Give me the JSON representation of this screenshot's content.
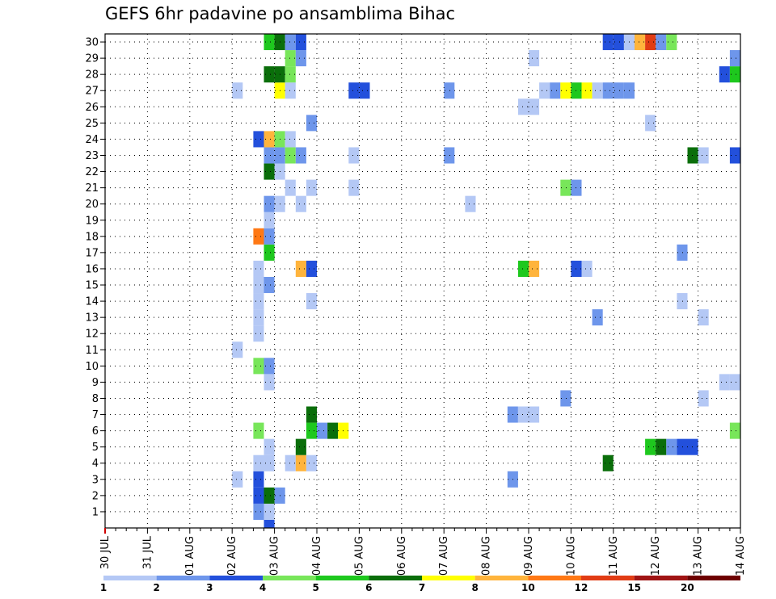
{
  "chart_data": {
    "type": "heatmap",
    "title": "GEFS 6hr padavine po ansamblima Bihac",
    "x_labels": [
      "30 JUL",
      "31 JUL",
      "01 AUG",
      "02 AUG",
      "03 AUG",
      "04 AUG",
      "05 AUG",
      "06 AUG",
      "07 AUG",
      "08 AUG",
      "09 AUG",
      "10 AUG",
      "11 AUG",
      "12 AUG",
      "13 AUG",
      "14 AUG"
    ],
    "y_labels": [
      "1",
      "2",
      "3",
      "4",
      "5",
      "6",
      "7",
      "8",
      "9",
      "10",
      "11",
      "12",
      "13",
      "14",
      "15",
      "16",
      "17",
      "18",
      "19",
      "20",
      "21",
      "22",
      "23",
      "24",
      "25",
      "26",
      "27",
      "28",
      "29",
      "30"
    ],
    "x_unit": "6h steps since 30 JUL 00Z",
    "x_range": [
      0,
      60
    ],
    "y_range": [
      0,
      30
    ],
    "grid": true,
    "colorbar": {
      "labels": [
        "1",
        "2",
        "3",
        "4",
        "5",
        "6",
        "7",
        "8",
        "10",
        "12",
        "15",
        "20"
      ],
      "colors": [
        "#b4c8f5",
        "#6e96eb",
        "#2350dc",
        "#78e65a",
        "#1ec81e",
        "#0a6e0a",
        "#ffff00",
        "#ffb43c",
        "#ff7814",
        "#e13c14",
        "#a01414",
        "#6e0000"
      ]
    },
    "cells": [
      [
        15,
        0,
        "#2350dc"
      ],
      [
        14,
        1,
        "#6e96eb"
      ],
      [
        15,
        1,
        "#b4c8f5"
      ],
      [
        14,
        2,
        "#2350dc"
      ],
      [
        15,
        2,
        "#0a6e0a"
      ],
      [
        16,
        2,
        "#6e96eb"
      ],
      [
        14,
        3,
        "#2350dc"
      ],
      [
        12,
        3,
        "#b4c8f5"
      ],
      [
        38,
        3,
        "#6e96eb"
      ],
      [
        14,
        4,
        "#b4c8f5"
      ],
      [
        15,
        4,
        "#b4c8f5"
      ],
      [
        17,
        4,
        "#b4c8f5"
      ],
      [
        18,
        4,
        "#ffb43c"
      ],
      [
        19,
        4,
        "#b4c8f5"
      ],
      [
        47,
        4,
        "#0a6e0a"
      ],
      [
        15,
        5,
        "#b4c8f5"
      ],
      [
        18,
        5,
        "#0a6e0a"
      ],
      [
        51,
        5,
        "#1ec81e"
      ],
      [
        52,
        5,
        "#0a6e0a"
      ],
      [
        53,
        5,
        "#6e96eb"
      ],
      [
        54,
        5,
        "#2350dc"
      ],
      [
        55,
        5,
        "#2350dc"
      ],
      [
        14,
        6,
        "#78e65a"
      ],
      [
        19,
        6,
        "#1ec81e"
      ],
      [
        20,
        6,
        "#6e96eb"
      ],
      [
        21,
        6,
        "#0a6e0a"
      ],
      [
        22,
        6,
        "#ffff00"
      ],
      [
        59,
        6,
        "#78e65a"
      ],
      [
        19,
        7,
        "#0a6e0a"
      ],
      [
        38,
        7,
        "#6e96eb"
      ],
      [
        39,
        7,
        "#b4c8f5"
      ],
      [
        40,
        7,
        "#b4c8f5"
      ],
      [
        43,
        8,
        "#6e96eb"
      ],
      [
        56,
        8,
        "#b4c8f5"
      ],
      [
        15,
        9,
        "#b4c8f5"
      ],
      [
        58,
        9,
        "#b4c8f5"
      ],
      [
        59,
        9,
        "#b4c8f5"
      ],
      [
        14,
        10,
        "#78e65a"
      ],
      [
        15,
        10,
        "#6e96eb"
      ],
      [
        12,
        11,
        "#b4c8f5"
      ],
      [
        14,
        12,
        "#b4c8f5"
      ],
      [
        14,
        13,
        "#b4c8f5"
      ],
      [
        46,
        13,
        "#6e96eb"
      ],
      [
        56,
        13,
        "#b4c8f5"
      ],
      [
        14,
        14,
        "#b4c8f5"
      ],
      [
        19,
        14,
        "#b4c8f5"
      ],
      [
        54,
        14,
        "#b4c8f5"
      ],
      [
        14,
        15,
        "#b4c8f5"
      ],
      [
        15,
        15,
        "#6e96eb"
      ],
      [
        14,
        16,
        "#b4c8f5"
      ],
      [
        18,
        16,
        "#ffb43c"
      ],
      [
        19,
        16,
        "#2350dc"
      ],
      [
        39,
        16,
        "#1ec81e"
      ],
      [
        40,
        16,
        "#ffb43c"
      ],
      [
        44,
        16,
        "#2350dc"
      ],
      [
        45,
        16,
        "#b4c8f5"
      ],
      [
        15,
        17,
        "#1ec81e"
      ],
      [
        54,
        17,
        "#6e96eb"
      ],
      [
        14,
        18,
        "#ff7814"
      ],
      [
        15,
        18,
        "#6e96eb"
      ],
      [
        15,
        19,
        "#b4c8f5"
      ],
      [
        15,
        20,
        "#6e96eb"
      ],
      [
        16,
        20,
        "#b4c8f5"
      ],
      [
        18,
        20,
        "#b4c8f5"
      ],
      [
        34,
        20,
        "#b4c8f5"
      ],
      [
        17,
        21,
        "#b4c8f5"
      ],
      [
        19,
        21,
        "#b4c8f5"
      ],
      [
        23,
        21,
        "#b4c8f5"
      ],
      [
        43,
        21,
        "#78e65a"
      ],
      [
        44,
        21,
        "#6e96eb"
      ],
      [
        15,
        22,
        "#0a6e0a"
      ],
      [
        16,
        22,
        "#b4c8f5"
      ],
      [
        15,
        23,
        "#6e96eb"
      ],
      [
        16,
        23,
        "#6e96eb"
      ],
      [
        17,
        23,
        "#78e65a"
      ],
      [
        18,
        23,
        "#6e96eb"
      ],
      [
        23,
        23,
        "#b4c8f5"
      ],
      [
        32,
        23,
        "#6e96eb"
      ],
      [
        55,
        23,
        "#0a6e0a"
      ],
      [
        56,
        23,
        "#b4c8f5"
      ],
      [
        59,
        23,
        "#2350dc"
      ],
      [
        14,
        24,
        "#2350dc"
      ],
      [
        15,
        24,
        "#ffb43c"
      ],
      [
        16,
        24,
        "#78e65a"
      ],
      [
        17,
        24,
        "#b4c8f5"
      ],
      [
        19,
        25,
        "#6e96eb"
      ],
      [
        51,
        25,
        "#b4c8f5"
      ],
      [
        39,
        26,
        "#b4c8f5"
      ],
      [
        40,
        26,
        "#b4c8f5"
      ],
      [
        12,
        27,
        "#b4c8f5"
      ],
      [
        16,
        27,
        "#ffff00"
      ],
      [
        17,
        27,
        "#b4c8f5"
      ],
      [
        23,
        27,
        "#2350dc"
      ],
      [
        24,
        27,
        "#2350dc"
      ],
      [
        32,
        27,
        "#6e96eb"
      ],
      [
        41,
        27,
        "#b4c8f5"
      ],
      [
        42,
        27,
        "#6e96eb"
      ],
      [
        43,
        27,
        "#ffff00"
      ],
      [
        44,
        27,
        "#1ec81e"
      ],
      [
        45,
        27,
        "#ffff00"
      ],
      [
        46,
        27,
        "#b4c8f5"
      ],
      [
        47,
        27,
        "#6e96eb"
      ],
      [
        48,
        27,
        "#6e96eb"
      ],
      [
        49,
        27,
        "#6e96eb"
      ],
      [
        15,
        28,
        "#0a6e0a"
      ],
      [
        16,
        28,
        "#0a6e0a"
      ],
      [
        17,
        28,
        "#78e65a"
      ],
      [
        58,
        28,
        "#2350dc"
      ],
      [
        59,
        28,
        "#1ec81e"
      ],
      [
        17,
        29,
        "#78e65a"
      ],
      [
        18,
        29,
        "#6e96eb"
      ],
      [
        40,
        29,
        "#b4c8f5"
      ],
      [
        59,
        29,
        "#6e96eb"
      ],
      [
        15,
        30,
        "#1ec81e"
      ],
      [
        16,
        30,
        "#0a6e0a"
      ],
      [
        17,
        30,
        "#6e96eb"
      ],
      [
        18,
        30,
        "#2350dc"
      ],
      [
        47,
        30,
        "#2350dc"
      ],
      [
        48,
        30,
        "#2350dc"
      ],
      [
        49,
        30,
        "#b4c8f5"
      ],
      [
        50,
        30,
        "#ffb43c"
      ],
      [
        51,
        30,
        "#e13c14"
      ],
      [
        52,
        30,
        "#6e96eb"
      ],
      [
        53,
        30,
        "#78e65a"
      ]
    ]
  }
}
